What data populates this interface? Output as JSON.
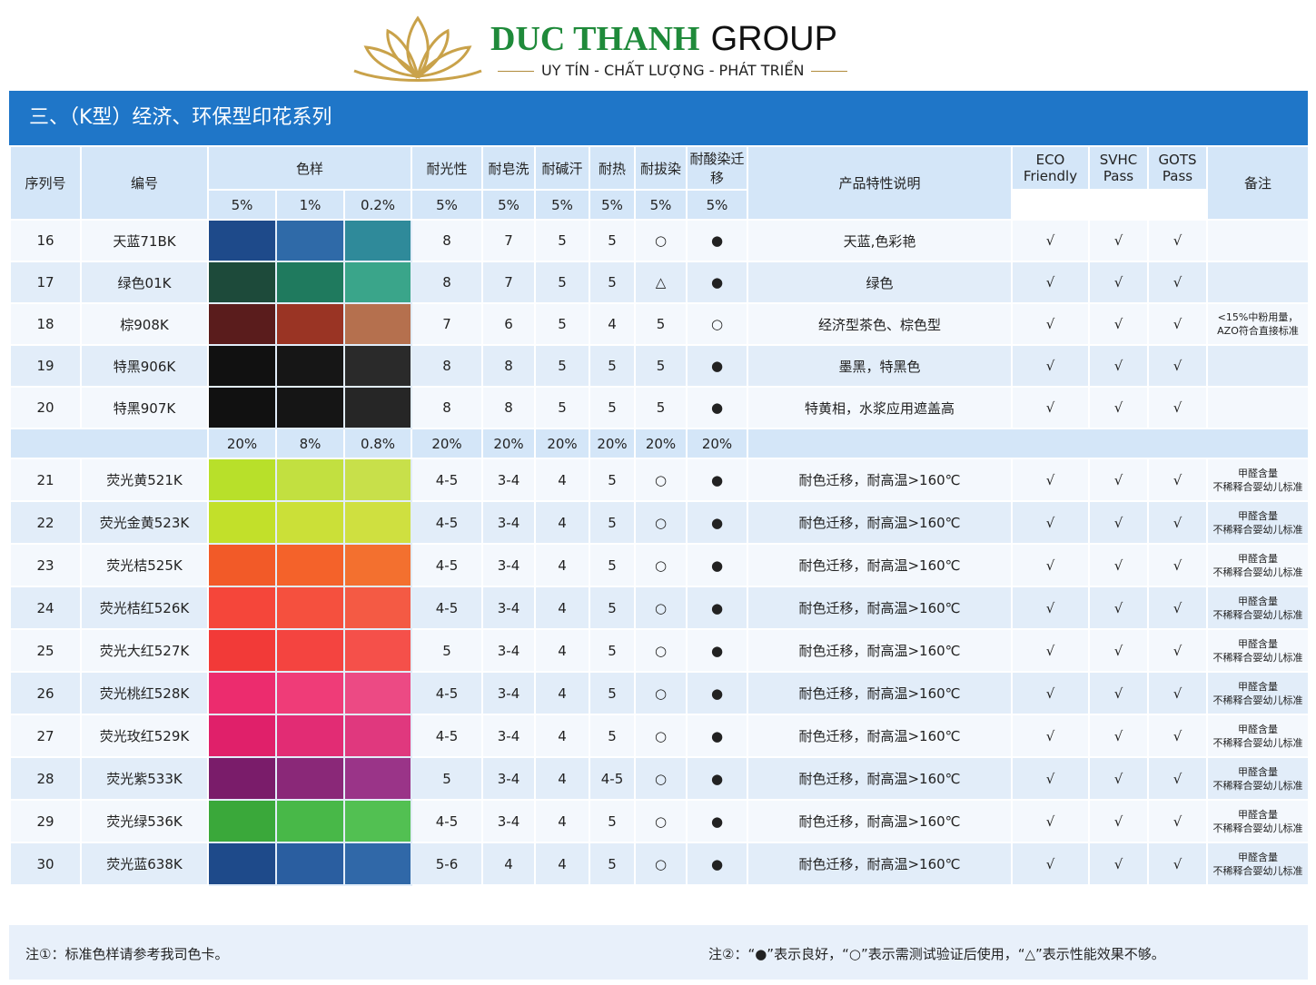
{
  "header": {
    "brand": "DUC THANH",
    "brand2": "GROUP",
    "slogan": "UY TÍN - CHẤT LƯỢNG - PHÁT TRIỂN"
  },
  "section_title": "三、（K型）经济、环保型印花系列",
  "table": {
    "columns": [
      "序列号",
      "编号",
      "色样",
      "耐光性",
      "耐皂洗",
      "耐碱汗",
      "耐热",
      "耐拔染",
      "耐酸染迁移",
      "产品特性说明",
      "ECO Friendly",
      "SVHC Pass",
      "GOTS Pass",
      "备注"
    ],
    "concentrations_1": [
      "5%",
      "1%",
      "0.2%",
      "5%",
      "5%",
      "5%",
      "5%",
      "5%",
      "5%"
    ],
    "rows_1": [
      {
        "cells": [
          "16",
          "天蓝71BK",
          "8",
          "7",
          "5",
          "5",
          "○",
          "●",
          "天蓝,色彩艳",
          "√",
          "√",
          "√"
        ],
        "remark": null,
        "swatches": [
          "#1e4a8a",
          "#2f6aa8",
          "#2f8a9a"
        ]
      },
      {
        "cells": [
          "17",
          "绿色01K",
          "8",
          "7",
          "5",
          "5",
          "△",
          "●",
          "绿色",
          "√",
          "√",
          "√"
        ],
        "remark": null,
        "swatches": [
          "#1d4a3a",
          "#1f7a5e",
          "#3aa58a"
        ]
      },
      {
        "cells": [
          "18",
          "棕908K",
          "7",
          "6",
          "5",
          "4",
          "5",
          "○",
          "经济型茶色、棕色型",
          "√",
          "√",
          "√"
        ],
        "remark": [
          "<15%中粉用量，",
          "AZO符合直接标准"
        ],
        "swatches": [
          "#5a1c1c",
          "#9a3424",
          "#b5704e"
        ]
      },
      {
        "cells": [
          "19",
          "特黑906K",
          "8",
          "8",
          "5",
          "5",
          "5",
          "●",
          "墨黑，特黑色",
          "√",
          "√",
          "√"
        ],
        "remark": null,
        "swatches": [
          "#111111",
          "#161616",
          "#2a2a2a"
        ]
      },
      {
        "cells": [
          "20",
          "特黑907K",
          "8",
          "8",
          "5",
          "5",
          "5",
          "●",
          "特黄相，水浆应用遮盖高",
          "√",
          "√",
          "√"
        ],
        "remark": null,
        "swatches": [
          "#111111",
          "#151515",
          "#262626"
        ]
      }
    ],
    "concentrations_2": [
      "20%",
      "8%",
      "0.8%",
      "20%",
      "20%",
      "20%",
      "20%",
      "20%",
      "20%"
    ],
    "rows_2": [
      {
        "cells": [
          "21",
          "荧光黄521K",
          "4-5",
          "3-4",
          "4",
          "5",
          "○",
          "●",
          "耐色迁移，耐高温>160℃",
          "√",
          "√",
          "√"
        ],
        "remark": [
          "甲醛含量",
          "不稀释合婴幼儿标准"
        ],
        "swatches": [
          "#b8e02a",
          "#c2e040",
          "#c8e04a"
        ]
      },
      {
        "cells": [
          "22",
          "荧光金黄523K",
          "4-5",
          "3-4",
          "4",
          "5",
          "○",
          "●",
          "耐色迁移，耐高温>160℃",
          "√",
          "√",
          "√"
        ],
        "remark": [
          "甲醛含量",
          "不稀释合婴幼儿标准"
        ],
        "swatches": [
          "#c2e02a",
          "#cbe038",
          "#cfe040"
        ]
      },
      {
        "cells": [
          "23",
          "荧光桔525K",
          "4-5",
          "3-4",
          "4",
          "5",
          "○",
          "●",
          "耐色迁移，耐高温>160℃",
          "√",
          "√",
          "√"
        ],
        "remark": [
          "甲醛含量",
          "不稀释合婴幼儿标准"
        ],
        "swatches": [
          "#f25a28",
          "#f4622a",
          "#f3702f"
        ]
      },
      {
        "cells": [
          "24",
          "荧光桔红526K",
          "4-5",
          "3-4",
          "4",
          "5",
          "○",
          "●",
          "耐色迁移，耐高温>160℃",
          "√",
          "√",
          "√"
        ],
        "remark": [
          "甲醛含量",
          "不稀释合婴幼儿标准"
        ],
        "swatches": [
          "#f5463a",
          "#f5503e",
          "#f45a44"
        ]
      },
      {
        "cells": [
          "25",
          "荧光大红527K",
          "5",
          "3-4",
          "4",
          "5",
          "○",
          "●",
          "耐色迁移，耐高温>160℃",
          "√",
          "√",
          "√"
        ],
        "remark": [
          "甲醛含量",
          "不稀释合婴幼儿标准"
        ],
        "swatches": [
          "#f23a38",
          "#f44440",
          "#f5504a"
        ]
      },
      {
        "cells": [
          "26",
          "荧光桃红528K",
          "4-5",
          "3-4",
          "4",
          "5",
          "○",
          "●",
          "耐色迁移，耐高温>160℃",
          "√",
          "√",
          "√"
        ],
        "remark": [
          "甲醛含量",
          "不稀释合婴幼儿标准"
        ],
        "swatches": [
          "#ec2c6e",
          "#ef3c78",
          "#ec4a84"
        ]
      },
      {
        "cells": [
          "27",
          "荧光玫红529K",
          "4-5",
          "3-4",
          "4",
          "5",
          "○",
          "●",
          "耐色迁移，耐高温>160℃",
          "√",
          "√",
          "√"
        ],
        "remark": [
          "甲醛含量",
          "不稀释合婴幼儿标准"
        ],
        "swatches": [
          "#e0206a",
          "#e22c74",
          "#e0387e"
        ]
      },
      {
        "cells": [
          "28",
          "荧光紫533K",
          "5",
          "3-4",
          "4",
          "4-5",
          "○",
          "●",
          "耐色迁移，耐高温>160℃",
          "√",
          "√",
          "√"
        ],
        "remark": [
          "甲醛含量",
          "不稀释合婴幼儿标准"
        ],
        "swatches": [
          "#7a1c6a",
          "#8a2878",
          "#9a3488"
        ]
      },
      {
        "cells": [
          "29",
          "荧光绿536K",
          "4-5",
          "3-4",
          "4",
          "5",
          "○",
          "●",
          "耐色迁移，耐高温>160℃",
          "√",
          "√",
          "√"
        ],
        "remark": [
          "甲醛含量",
          "不稀释合婴幼儿标准"
        ],
        "swatches": [
          "#3aa83a",
          "#48b848",
          "#52c052"
        ]
      },
      {
        "cells": [
          "30",
          "荧光蓝638K",
          "5-6",
          "4",
          "4",
          "5",
          "○",
          "●",
          "耐色迁移，耐高温>160℃",
          "√",
          "√",
          "√"
        ],
        "remark": [
          "甲醛含量",
          "不稀释合婴幼儿标准"
        ],
        "swatches": [
          "#1e4a8a",
          "#2a5ea0",
          "#3068a8"
        ]
      }
    ]
  },
  "notes": [
    "注①：标准色样请参考我司色卡。",
    "注②：“●”表示良好，“○”表示需测试验证后使用，“△”表示性能效果不够。"
  ]
}
